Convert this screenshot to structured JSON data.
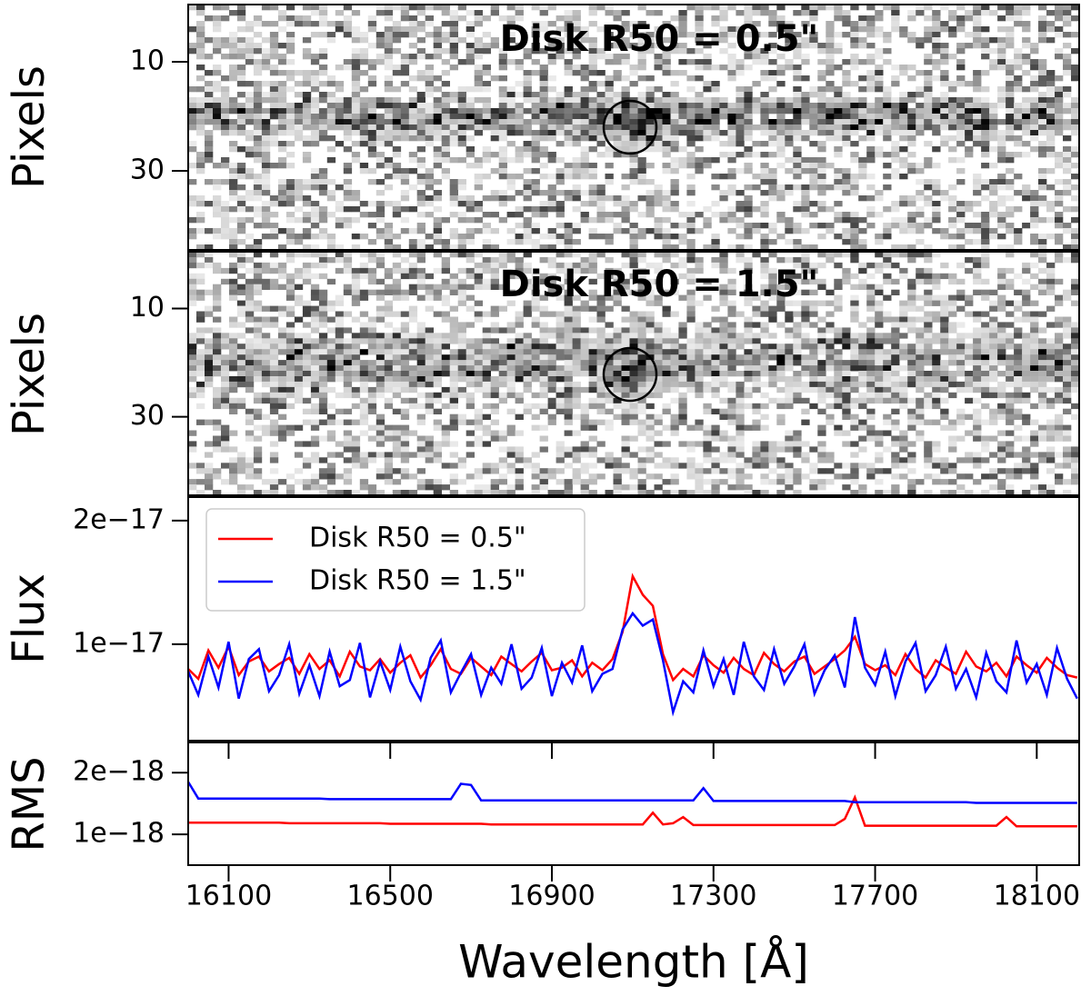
{
  "chart_data": [
    {
      "type": "image",
      "annotation": "Disk R50 = 0.5\"",
      "ylabel": "Pixels",
      "ylim": [
        -0.5,
        44.5
      ],
      "yticks": [
        10,
        30
      ],
      "xlim": [
        16000,
        18205
      ],
      "band": {
        "center": 20,
        "strength": "strong"
      }
    },
    {
      "type": "image",
      "annotation": "Disk R50 = 1.5\"",
      "ylabel": "Pixels",
      "ylim": [
        -0.5,
        44.5
      ],
      "yticks": [
        10,
        30
      ],
      "xlim": [
        16000,
        18205
      ],
      "band": {
        "center": 20,
        "strength": "weak"
      }
    },
    {
      "type": "line",
      "ylabel": "Flux",
      "xlim": [
        16000,
        18205
      ],
      "ylim": [
        2.2e-18,
        2.19e-17
      ],
      "yticks": [
        {
          "value": 1e-17,
          "label": "1e−17"
        },
        {
          "value": 2e-17,
          "label": "2e−17"
        }
      ],
      "legend": "upper left",
      "x": [
        16000,
        16025,
        16050,
        16075,
        16100,
        16125,
        16150,
        16175,
        16200,
        16225,
        16250,
        16275,
        16300,
        16325,
        16350,
        16375,
        16400,
        16425,
        16450,
        16475,
        16500,
        16525,
        16550,
        16575,
        16600,
        16625,
        16650,
        16675,
        16700,
        16725,
        16750,
        16775,
        16800,
        16825,
        16850,
        16875,
        16900,
        16925,
        16950,
        16975,
        17000,
        17025,
        17050,
        17075,
        17100,
        17125,
        17150,
        17175,
        17200,
        17225,
        17250,
        17275,
        17300,
        17325,
        17350,
        17375,
        17400,
        17425,
        17450,
        17475,
        17500,
        17525,
        17550,
        17575,
        17600,
        17625,
        17650,
        17675,
        17700,
        17725,
        17750,
        17775,
        17800,
        17825,
        17850,
        17875,
        17900,
        17925,
        17950,
        17975,
        18000,
        18025,
        18050,
        18075,
        18100,
        18125,
        18150,
        18175,
        18200
      ],
      "series": [
        {
          "name": "Disk R50 = 0.5\"",
          "color": "#ff0000",
          "values": [
            8e-18,
            7.2e-18,
            9.5e-18,
            8.1e-18,
            9.8e-18,
            7.5e-18,
            8.6e-18,
            9e-18,
            7.8e-18,
            8.4e-18,
            8.9e-18,
            7.6e-18,
            9.2e-18,
            8e-18,
            8.7e-18,
            7.4e-18,
            9.4e-18,
            8.2e-18,
            7.9e-18,
            8.8e-18,
            7.7e-18,
            8.5e-18,
            9.1e-18,
            7.3e-18,
            8.3e-18,
            9.6e-18,
            8e-18,
            7.6e-18,
            8.9e-18,
            8.2e-18,
            7.5e-18,
            9e-18,
            8.4e-18,
            7.8e-18,
            8.6e-18,
            9.3e-18,
            7.9e-18,
            8.1e-18,
            8.7e-18,
            7.4e-18,
            8.5e-18,
            7.9e-18,
            8.8e-18,
            1.1e-17,
            1.55e-17,
            1.4e-17,
            1.31e-17,
            9.2e-18,
            7.1e-18,
            8e-18,
            7.4e-18,
            9.1e-18,
            8.3e-18,
            7.7e-18,
            8.9e-18,
            8e-18,
            7.5e-18,
            9.3e-18,
            8.4e-18,
            7.8e-18,
            8.6e-18,
            9e-18,
            7.6e-18,
            8.2e-18,
            8.8e-18,
            9.5e-18,
            1.06e-17,
            8.4e-18,
            7.9e-18,
            8.3e-18,
            7.5e-18,
            9.2e-18,
            8e-18,
            7.3e-18,
            8.7e-18,
            8.1e-18,
            7.6e-18,
            9.4e-18,
            8.2e-18,
            7.8e-18,
            8.5e-18,
            7.4e-18,
            9e-18,
            8.3e-18,
            7.7e-18,
            8.9e-18,
            8.1e-18,
            7.5e-18,
            7.3e-18
          ]
        },
        {
          "name": "Disk R50 = 1.5\"",
          "color": "#0000ff",
          "values": [
            7.8e-18,
            5.9e-18,
            9e-18,
            6.5e-18,
            1.02e-17,
            5.6e-18,
            8.8e-18,
            9.6e-18,
            6.2e-18,
            7.5e-18,
            1e-17,
            6e-18,
            8.3e-18,
            5.8e-18,
            9.4e-18,
            6.6e-18,
            7.1e-18,
            1.01e-17,
            5.7e-18,
            8.6e-18,
            6.3e-18,
            9.8e-18,
            7e-18,
            5.5e-18,
            8.9e-18,
            1.03e-17,
            6.1e-18,
            7.7e-18,
            9.2e-18,
            5.9e-18,
            8.1e-18,
            6.8e-18,
            1e-17,
            6.4e-18,
            7.3e-18,
            9.7e-18,
            5.8e-18,
            8.5e-18,
            6.9e-18,
            9.9e-18,
            6.2e-18,
            7.6e-18,
            8e-18,
            1.12e-17,
            1.25e-17,
            1.15e-17,
            1.2e-17,
            8.7e-18,
            4.5e-18,
            7e-18,
            6.1e-18,
            9.5e-18,
            6.6e-18,
            8.8e-18,
            5.9e-18,
            1.02e-17,
            7.4e-18,
            6.3e-18,
            9.6e-18,
            6.8e-18,
            8.2e-18,
            1e-17,
            6e-18,
            7.9e-18,
            9.1e-18,
            6.5e-18,
            1.22e-17,
            8.1e-18,
            6.7e-18,
            9.4e-18,
            5.8e-18,
            8.6e-18,
            1.01e-17,
            6.2e-18,
            7.5e-18,
            9.8e-18,
            6.4e-18,
            8e-18,
            5.7e-18,
            9.3e-18,
            7e-18,
            6.1e-18,
            1.03e-17,
            6.9e-18,
            8.4e-18,
            5.9e-18,
            9.7e-18,
            7.2e-18,
            5.6e-18
          ]
        }
      ]
    },
    {
      "type": "line",
      "ylabel": "RMS",
      "xlabel": "Wavelength [Å]",
      "xlim": [
        16000,
        18205
      ],
      "xticks": [
        16100,
        16500,
        16900,
        17300,
        17700,
        18100
      ],
      "ylim": [
        5e-19,
        2.49e-18
      ],
      "yticks": [
        {
          "value": 1e-18,
          "label": "1e−18"
        },
        {
          "value": 2e-18,
          "label": "2e−18"
        }
      ],
      "x": [
        16000,
        16025,
        16050,
        16075,
        16100,
        16125,
        16150,
        16175,
        16200,
        16225,
        16250,
        16275,
        16300,
        16325,
        16350,
        16375,
        16400,
        16425,
        16450,
        16475,
        16500,
        16525,
        16550,
        16575,
        16600,
        16625,
        16650,
        16675,
        16700,
        16725,
        16750,
        16775,
        16800,
        16825,
        16850,
        16875,
        16900,
        16925,
        16950,
        16975,
        17000,
        17025,
        17050,
        17075,
        17100,
        17125,
        17150,
        17175,
        17200,
        17225,
        17250,
        17275,
        17300,
        17325,
        17350,
        17375,
        17400,
        17425,
        17450,
        17475,
        17500,
        17525,
        17550,
        17575,
        17600,
        17625,
        17650,
        17675,
        17700,
        17725,
        17750,
        17775,
        17800,
        17825,
        17850,
        17875,
        17900,
        17925,
        17950,
        17975,
        18000,
        18025,
        18050,
        18075,
        18100,
        18125,
        18150,
        18175,
        18200
      ],
      "series": [
        {
          "name": "Disk R50 = 0.5\"",
          "color": "#ff0000",
          "values": [
            1.19e-18,
            1.19e-18,
            1.19e-18,
            1.19e-18,
            1.19e-18,
            1.19e-18,
            1.19e-18,
            1.19e-18,
            1.19e-18,
            1.19e-18,
            1.18e-18,
            1.18e-18,
            1.18e-18,
            1.18e-18,
            1.18e-18,
            1.18e-18,
            1.18e-18,
            1.18e-18,
            1.18e-18,
            1.18e-18,
            1.17e-18,
            1.17e-18,
            1.17e-18,
            1.17e-18,
            1.17e-18,
            1.17e-18,
            1.17e-18,
            1.17e-18,
            1.17e-18,
            1.17e-18,
            1.16e-18,
            1.16e-18,
            1.16e-18,
            1.16e-18,
            1.16e-18,
            1.16e-18,
            1.16e-18,
            1.16e-18,
            1.16e-18,
            1.16e-18,
            1.16e-18,
            1.16e-18,
            1.16e-18,
            1.16e-18,
            1.16e-18,
            1.16e-18,
            1.35e-18,
            1.16e-18,
            1.18e-18,
            1.28e-18,
            1.15e-18,
            1.15e-18,
            1.15e-18,
            1.15e-18,
            1.15e-18,
            1.15e-18,
            1.15e-18,
            1.15e-18,
            1.15e-18,
            1.15e-18,
            1.15e-18,
            1.15e-18,
            1.15e-18,
            1.15e-18,
            1.15e-18,
            1.25e-18,
            1.6e-18,
            1.14e-18,
            1.14e-18,
            1.14e-18,
            1.14e-18,
            1.14e-18,
            1.14e-18,
            1.14e-18,
            1.14e-18,
            1.14e-18,
            1.14e-18,
            1.14e-18,
            1.14e-18,
            1.14e-18,
            1.14e-18,
            1.28e-18,
            1.13e-18,
            1.13e-18,
            1.13e-18,
            1.13e-18,
            1.13e-18,
            1.13e-18,
            1.13e-18
          ]
        },
        {
          "name": "Disk R50 = 1.5\"",
          "color": "#0000ff",
          "values": [
            1.85e-18,
            1.58e-18,
            1.58e-18,
            1.58e-18,
            1.58e-18,
            1.58e-18,
            1.58e-18,
            1.58e-18,
            1.58e-18,
            1.58e-18,
            1.58e-18,
            1.58e-18,
            1.58e-18,
            1.58e-18,
            1.57e-18,
            1.57e-18,
            1.57e-18,
            1.57e-18,
            1.57e-18,
            1.57e-18,
            1.57e-18,
            1.57e-18,
            1.57e-18,
            1.57e-18,
            1.57e-18,
            1.57e-18,
            1.57e-18,
            1.82e-18,
            1.8e-18,
            1.55e-18,
            1.55e-18,
            1.55e-18,
            1.55e-18,
            1.55e-18,
            1.55e-18,
            1.55e-18,
            1.55e-18,
            1.55e-18,
            1.55e-18,
            1.55e-18,
            1.55e-18,
            1.55e-18,
            1.55e-18,
            1.55e-18,
            1.55e-18,
            1.55e-18,
            1.55e-18,
            1.55e-18,
            1.55e-18,
            1.55e-18,
            1.55e-18,
            1.75e-18,
            1.54e-18,
            1.54e-18,
            1.54e-18,
            1.54e-18,
            1.54e-18,
            1.54e-18,
            1.54e-18,
            1.54e-18,
            1.54e-18,
            1.54e-18,
            1.54e-18,
            1.54e-18,
            1.54e-18,
            1.54e-18,
            1.52e-18,
            1.52e-18,
            1.52e-18,
            1.52e-18,
            1.52e-18,
            1.52e-18,
            1.52e-18,
            1.52e-18,
            1.52e-18,
            1.52e-18,
            1.52e-18,
            1.52e-18,
            1.51e-18,
            1.51e-18,
            1.51e-18,
            1.51e-18,
            1.51e-18,
            1.51e-18,
            1.51e-18,
            1.51e-18,
            1.51e-18,
            1.51e-18,
            1.51e-18
          ]
        }
      ]
    }
  ]
}
